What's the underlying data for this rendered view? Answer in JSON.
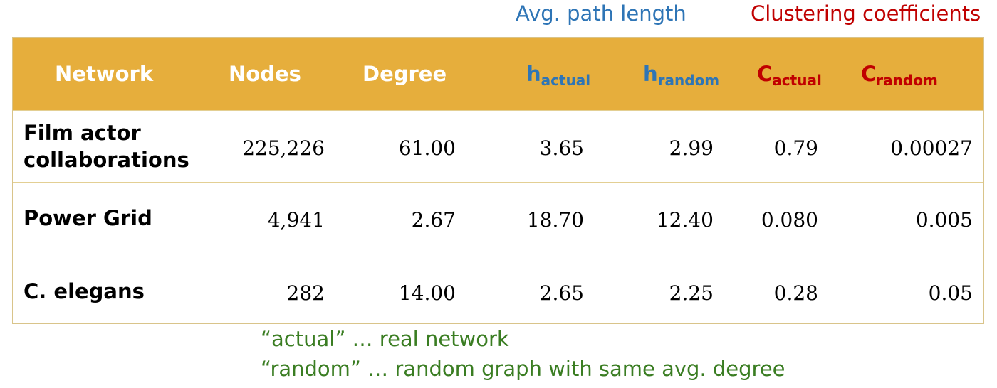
{
  "group_labels": {
    "path_length": "Avg. path length",
    "clustering": "Clustering coefficients"
  },
  "headers": {
    "network": "Network",
    "nodes": "Nodes",
    "degree": "Degree",
    "h_actual": {
      "base": "h",
      "sub": "actual"
    },
    "h_random": {
      "base": "h",
      "sub": "random"
    },
    "c_actual": {
      "base": "C",
      "sub": "actual"
    },
    "c_random": {
      "base": "C",
      "sub": "random"
    }
  },
  "rows": [
    {
      "network_line1": "Film actor",
      "network_line2": "collaborations",
      "nodes": "225,226",
      "degree": "61.00",
      "h_actual": "3.65",
      "h_random": "2.99",
      "c_actual": "0.79",
      "c_random": "0.00027"
    },
    {
      "network": "Power Grid",
      "nodes": "4,941",
      "degree": "2.67",
      "h_actual": "18.70",
      "h_random": "12.40",
      "c_actual": "0.080",
      "c_random": "0.005"
    },
    {
      "network": "C. elegans",
      "nodes": "282",
      "degree": "14.00",
      "h_actual": "2.65",
      "h_random": "2.25",
      "c_actual": "0.28",
      "c_random": "0.05"
    }
  ],
  "notes": [
    "“actual” … real network",
    "“random” … random graph with same avg. degree"
  ],
  "colors": {
    "header_bg": "#e6ae3c",
    "path_length": "#2e75b6",
    "clustering": "#c00000",
    "notes": "#3a7d22"
  }
}
